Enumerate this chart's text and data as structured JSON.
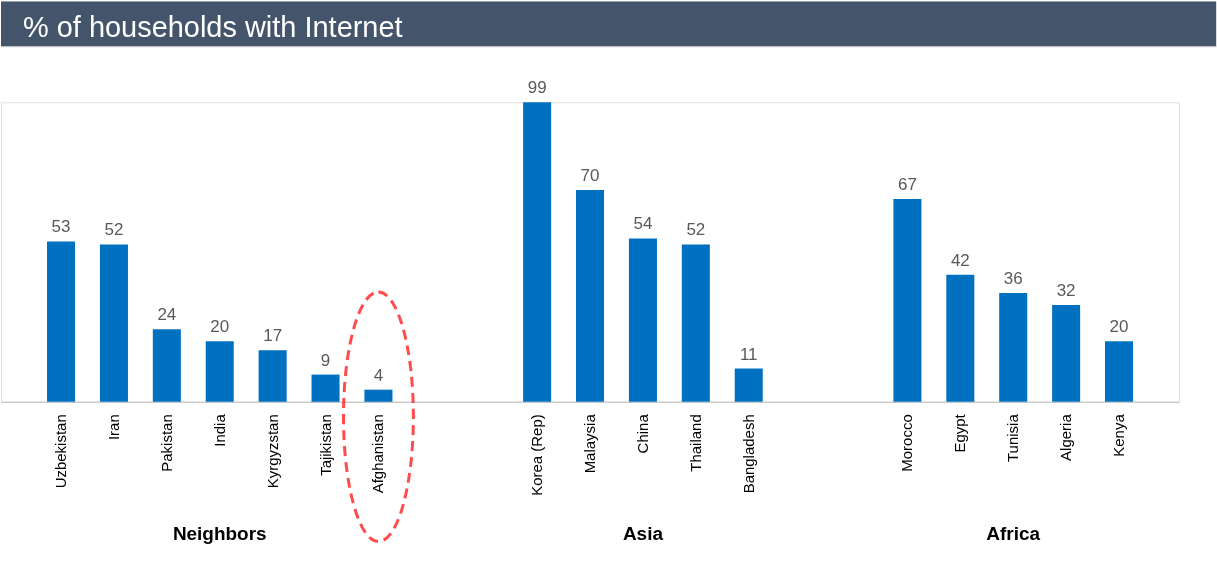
{
  "chart_data": {
    "type": "bar",
    "title": "% of households with Internet",
    "categories": [
      "Uzbekistan",
      "Iran",
      "Pakistan",
      "India",
      "Kyrgyzstan",
      "Tajikistan",
      "Afghanistan",
      null,
      null,
      "Korea (Rep)",
      "Malaysia",
      "China",
      "Thailand",
      "Bangladesh",
      null,
      null,
      "Morocco",
      "Egypt",
      "Tunisia",
      "Algeria",
      "Kenya"
    ],
    "values": [
      53,
      52,
      24,
      20,
      17,
      9,
      4,
      null,
      null,
      99,
      70,
      54,
      52,
      11,
      null,
      null,
      67,
      42,
      36,
      32,
      20
    ],
    "color": "#0070c0",
    "annotations": [
      "Neighbors",
      "Asia",
      "Africa"
    ],
    "data_labels": true
  }
}
